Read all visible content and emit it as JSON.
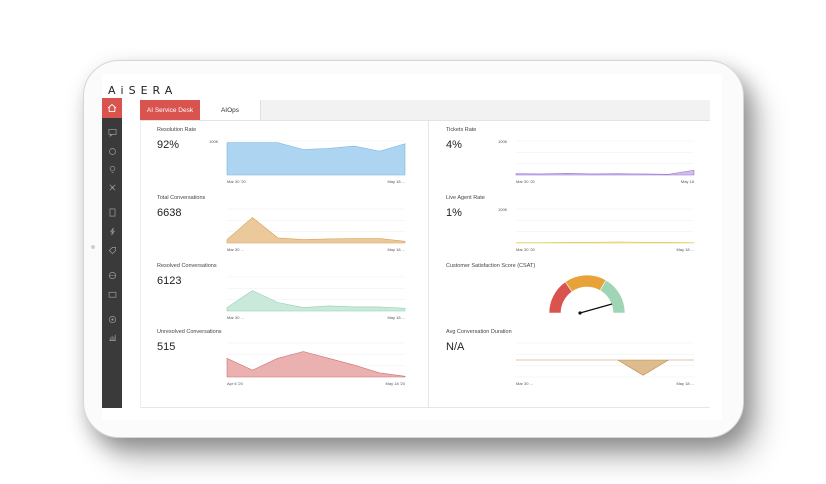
{
  "app": {
    "logo": "AiSERA"
  },
  "tabs": [
    {
      "label": "AI Service Desk",
      "active": true
    },
    {
      "label": "AIOps",
      "active": false
    }
  ],
  "sidebar": {
    "icons": [
      "home-icon",
      "chat-icon",
      "refresh-icon",
      "lightbulb-icon",
      "network-icon",
      "document-icon",
      "lightning-icon",
      "tag-icon",
      "globe-icon",
      "wallet-icon",
      "settings-icon",
      "bar-chart-icon"
    ]
  },
  "colors": {
    "accent": "#d9534f",
    "sidebar": "#3a3a3a"
  },
  "cards": [
    {
      "key": "resolution_rate",
      "label": "Resolution Rate",
      "value": "92%",
      "ymax_label": "100K",
      "x_start": "Mar 30 '20",
      "x_end": "May 18 ...",
      "color": "#9fcdee",
      "line": "#7db6e3"
    },
    {
      "key": "tickets_rate",
      "label": "Tickets Rate",
      "value": "4%",
      "ymax_label": "100K",
      "x_start": "Mar 30 '20",
      "x_end": "May 18",
      "color": "#c7b3e6",
      "line": "#9b79d6"
    },
    {
      "key": "total_conversations",
      "label": "Total Conversations",
      "value": "6638",
      "ymax_label": "",
      "x_start": "Mar 30 ...",
      "x_end": "May 18 ...",
      "color": "#e8c08a",
      "line": "#d9a25c"
    },
    {
      "key": "live_agent_rate",
      "label": "Live Agent Rate",
      "value": "1%",
      "ymax_label": "100K",
      "x_start": "Mar 30 '20",
      "x_end": "May 18 ...",
      "color": "#f3e59a",
      "line": "#e2cf5e"
    },
    {
      "key": "resolved_conversations",
      "label": "Resolved Conversations",
      "value": "6123",
      "ymax_label": "",
      "x_start": "Mar 30 ...",
      "x_end": "May 18 ...",
      "color": "#bfe6d3",
      "line": "#8fd1b1"
    },
    {
      "key": "unresolved_conversations",
      "label": "Unresolved Conversations",
      "value": "515",
      "ymax_label": "",
      "x_start": "Apr 6 '20",
      "x_end": "May 18 '20",
      "color": "#e7a3a3",
      "line": "#d07070"
    },
    {
      "key": "avg_conversation_duration",
      "label": "Avg Conversation Duration",
      "value": "N/A",
      "ymax_label": "",
      "x_start": "Mar 30 ...",
      "x_end": "May 18 ...",
      "color": "#d8b07a",
      "line": "#b98c4a"
    }
  ],
  "csat": {
    "label": "Customer Satisfaction Score (CSAT)",
    "segments": [
      {
        "color": "#d9534f"
      },
      {
        "color": "#e8a23a"
      },
      {
        "color": "#9fd5b5"
      }
    ]
  },
  "chart_data": [
    {
      "type": "area",
      "title": "Resolution Rate",
      "x": [
        0,
        1,
        2,
        3,
        4,
        5,
        6,
        7
      ],
      "values": [
        0.95,
        0.95,
        0.95,
        0.75,
        0.78,
        0.85,
        0.7,
        0.92
      ],
      "ylim": [
        0,
        1
      ]
    },
    {
      "type": "area",
      "title": "Tickets Rate",
      "x": [
        0,
        1,
        2,
        3,
        4,
        5,
        6,
        7
      ],
      "values": [
        0.04,
        0.03,
        0.05,
        0.03,
        0.04,
        0.03,
        0.02,
        0.14
      ],
      "ylim": [
        0,
        1
      ]
    },
    {
      "type": "area",
      "title": "Total Conversations",
      "x": [
        0,
        1,
        2,
        3,
        4,
        5,
        6,
        7
      ],
      "values": [
        0.1,
        0.75,
        0.15,
        0.1,
        0.12,
        0.13,
        0.13,
        0.05
      ],
      "ylim": [
        0,
        1
      ]
    },
    {
      "type": "area",
      "title": "Live Agent Rate",
      "x": [
        0,
        1,
        2,
        3,
        4,
        5,
        6,
        7
      ],
      "values": [
        0.01,
        0.01,
        0.02,
        0.02,
        0.03,
        0.02,
        0.02,
        0.01
      ],
      "ylim": [
        0,
        1
      ]
    },
    {
      "type": "area",
      "title": "Resolved Conversations",
      "x": [
        0,
        1,
        2,
        3,
        4,
        5,
        6,
        7
      ],
      "values": [
        0.1,
        0.6,
        0.25,
        0.1,
        0.15,
        0.12,
        0.12,
        0.08
      ],
      "ylim": [
        0,
        1
      ]
    },
    {
      "type": "area",
      "title": "Unresolved Conversations",
      "x": [
        0,
        1,
        2,
        3,
        4,
        5,
        6,
        7
      ],
      "values": [
        0.55,
        0.2,
        0.55,
        0.75,
        0.55,
        0.35,
        0.12,
        0.02
      ],
      "ylim": [
        0,
        1
      ]
    },
    {
      "type": "area",
      "title": "Avg Conversation Duration",
      "x": [
        0,
        1,
        2,
        3,
        4,
        5,
        6,
        7
      ],
      "values": [
        0,
        0,
        0,
        0,
        0,
        -0.9,
        0,
        0
      ],
      "ylim": [
        -1,
        1
      ]
    }
  ]
}
